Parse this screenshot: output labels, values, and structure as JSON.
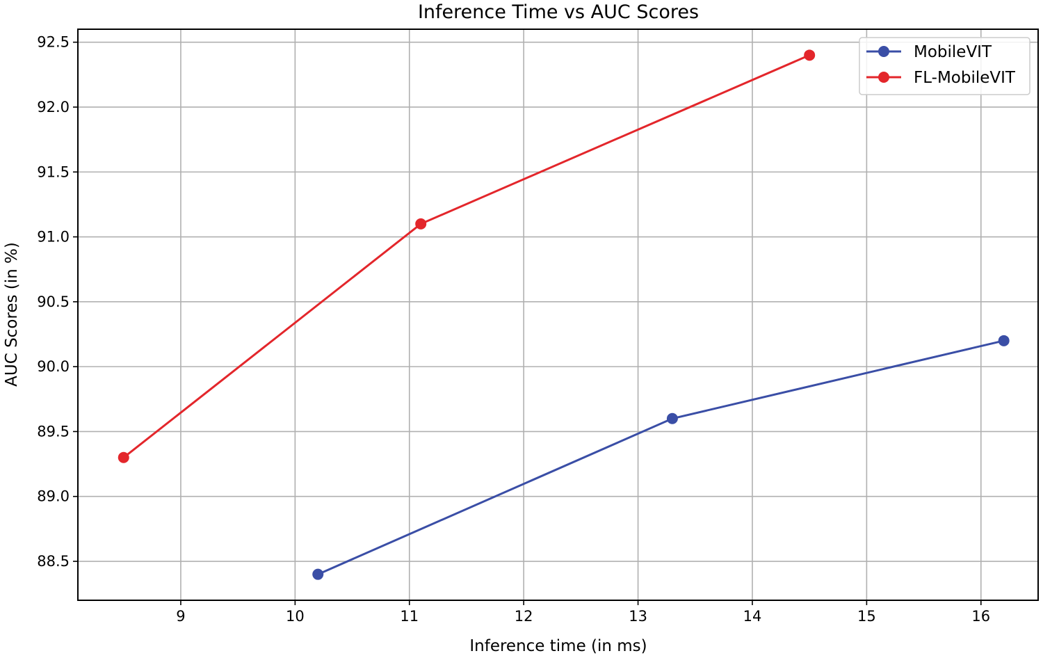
{
  "chart_data": {
    "type": "line",
    "title": "Inference Time vs AUC Scores",
    "xlabel": "Inference time (in ms)",
    "ylabel": "AUC Scores (in %)",
    "xlim": [
      8.1,
      16.5
    ],
    "ylim": [
      88.2,
      92.6
    ],
    "xticks": [
      "9",
      "10",
      "11",
      "12",
      "13",
      "14",
      "15",
      "16"
    ],
    "yticks": [
      "88.5",
      "89.0",
      "89.5",
      "90.0",
      "90.5",
      "91.0",
      "91.5",
      "92.0",
      "92.5"
    ],
    "grid": true,
    "legend_position": "top-right",
    "series": [
      {
        "name": "MobileVIT",
        "color": "#3a4ea6",
        "marker": "circle",
        "x": [
          10.2,
          13.3,
          16.2
        ],
        "y": [
          88.4,
          89.6,
          90.2
        ]
      },
      {
        "name": "FL-MobileVIT",
        "color": "#e3262b",
        "marker": "circle",
        "x": [
          8.5,
          11.1,
          14.5
        ],
        "y": [
          89.3,
          91.1,
          92.4
        ]
      }
    ]
  }
}
